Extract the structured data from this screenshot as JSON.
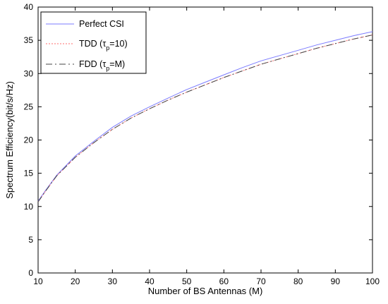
{
  "chart_data": {
    "type": "line",
    "xlabel": "Number of BS Antennas (M)",
    "ylabel": "Spectrum Efficiency(bit/s/Hz)",
    "xlim": [
      10,
      100
    ],
    "ylim": [
      0,
      40
    ],
    "xticks": [
      10,
      20,
      30,
      40,
      50,
      60,
      70,
      80,
      90,
      100
    ],
    "yticks": [
      0,
      5,
      10,
      15,
      20,
      25,
      30,
      35,
      40
    ],
    "grid": false,
    "legend_position": "top-left",
    "x": [
      10,
      12,
      15,
      20,
      25,
      30,
      35,
      40,
      45,
      50,
      55,
      60,
      65,
      70,
      75,
      80,
      85,
      90,
      95,
      100
    ],
    "series": [
      {
        "name": "Perfect CSI",
        "color": "#7b7bff",
        "style": "solid",
        "values": [
          10.8,
          12.4,
          14.7,
          17.6,
          19.8,
          21.9,
          23.6,
          25.0,
          26.3,
          27.6,
          28.7,
          29.8,
          30.9,
          31.9,
          32.7,
          33.5,
          34.3,
          35.0,
          35.7,
          36.3
        ]
      },
      {
        "name": "TDD (τp=10)",
        "label_main": "TDD (",
        "label_sym": "τ",
        "label_sub": "p",
        "label_rest": "=10)",
        "color": "#ff6e6e",
        "style": "dotted",
        "values": [
          10.7,
          12.3,
          14.6,
          17.4,
          19.6,
          21.6,
          23.3,
          24.7,
          26.0,
          27.2,
          28.3,
          29.4,
          30.4,
          31.4,
          32.2,
          33.0,
          33.8,
          34.5,
          35.2,
          35.8
        ]
      },
      {
        "name": "FDD (τp=M)",
        "label_main": "FDD (",
        "label_sym": "τ",
        "label_sub": "p",
        "label_rest": "=M)",
        "color": "#444444",
        "style": "dashdot",
        "values": [
          10.7,
          12.3,
          14.6,
          17.4,
          19.6,
          21.6,
          23.3,
          24.7,
          26.0,
          27.2,
          28.3,
          29.4,
          30.4,
          31.4,
          32.2,
          33.0,
          33.8,
          34.5,
          35.2,
          35.8
        ]
      }
    ]
  }
}
